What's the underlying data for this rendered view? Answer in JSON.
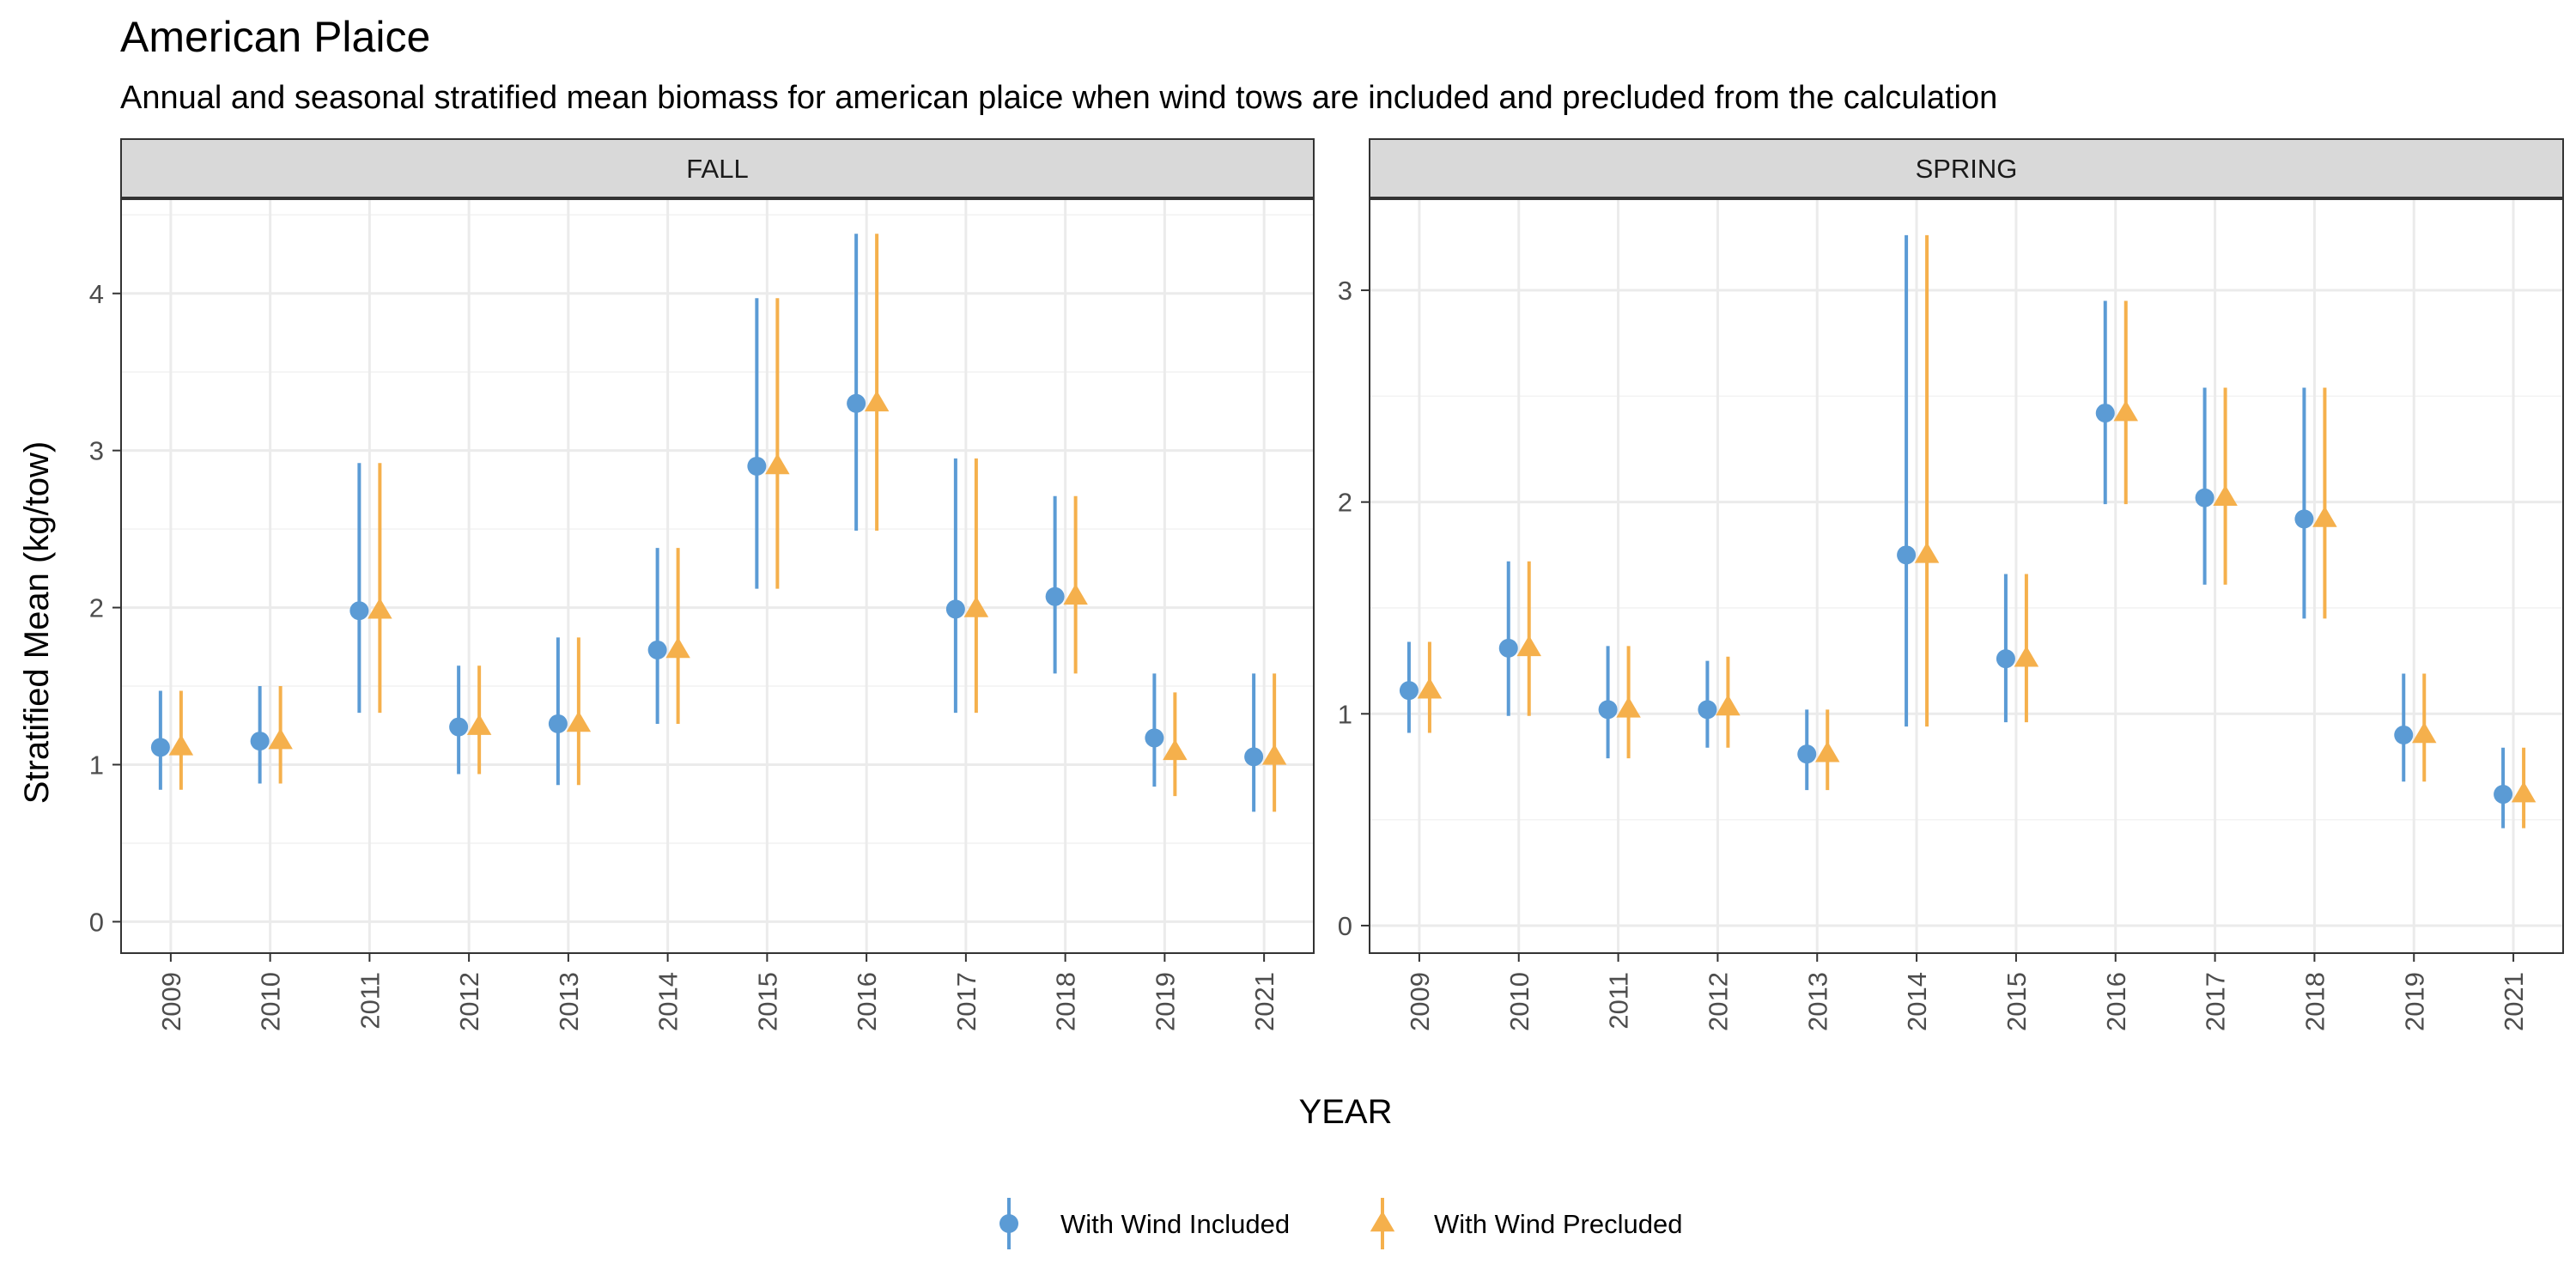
{
  "chart_data": {
    "type": "scatter",
    "title": "American Plaice",
    "subtitle": "Annual and seasonal stratified mean biomass for american plaice when wind tows are included and precluded from the calculation",
    "xlabel": "YEAR",
    "ylabel": "Stratified Mean (kg/tow)",
    "legend_position": "bottom",
    "grid": true,
    "series": [
      {
        "name": "With Wind Included",
        "color": "#5B9BD5",
        "marker": "circle"
      },
      {
        "name": "With Wind Precluded",
        "color": "#F5B04C",
        "marker": "triangle"
      }
    ],
    "panels": [
      {
        "strip": "FALL",
        "categories": [
          "2009",
          "2010",
          "2011",
          "2012",
          "2013",
          "2014",
          "2015",
          "2016",
          "2017",
          "2018",
          "2019",
          "2021"
        ],
        "ylim": [
          -0.2,
          4.6
        ],
        "yticks": [
          0,
          1,
          2,
          3,
          4
        ],
        "series_values": [
          [
            {
              "x": "2009",
              "y": 1.11,
              "lo": 0.84,
              "hi": 1.47
            },
            {
              "x": "2010",
              "y": 1.15,
              "lo": 0.88,
              "hi": 1.5
            },
            {
              "x": "2011",
              "y": 1.98,
              "lo": 1.33,
              "hi": 2.92
            },
            {
              "x": "2012",
              "y": 1.24,
              "lo": 0.94,
              "hi": 1.63
            },
            {
              "x": "2013",
              "y": 1.26,
              "lo": 0.87,
              "hi": 1.81
            },
            {
              "x": "2014",
              "y": 1.73,
              "lo": 1.26,
              "hi": 2.38
            },
            {
              "x": "2015",
              "y": 2.9,
              "lo": 2.12,
              "hi": 3.97
            },
            {
              "x": "2016",
              "y": 3.3,
              "lo": 2.49,
              "hi": 4.38
            },
            {
              "x": "2017",
              "y": 1.99,
              "lo": 1.33,
              "hi": 2.95
            },
            {
              "x": "2018",
              "y": 2.07,
              "lo": 1.58,
              "hi": 2.71
            },
            {
              "x": "2019",
              "y": 1.17,
              "lo": 0.86,
              "hi": 1.58
            },
            {
              "x": "2021",
              "y": 1.05,
              "lo": 0.7,
              "hi": 1.58
            }
          ],
          [
            {
              "x": "2009",
              "y": 1.11,
              "lo": 0.84,
              "hi": 1.47
            },
            {
              "x": "2010",
              "y": 1.15,
              "lo": 0.88,
              "hi": 1.5
            },
            {
              "x": "2011",
              "y": 1.98,
              "lo": 1.33,
              "hi": 2.92
            },
            {
              "x": "2012",
              "y": 1.24,
              "lo": 0.94,
              "hi": 1.63
            },
            {
              "x": "2013",
              "y": 1.26,
              "lo": 0.87,
              "hi": 1.81
            },
            {
              "x": "2014",
              "y": 1.73,
              "lo": 1.26,
              "hi": 2.38
            },
            {
              "x": "2015",
              "y": 2.9,
              "lo": 2.12,
              "hi": 3.97
            },
            {
              "x": "2016",
              "y": 3.3,
              "lo": 2.49,
              "hi": 4.38
            },
            {
              "x": "2017",
              "y": 1.99,
              "lo": 1.33,
              "hi": 2.95
            },
            {
              "x": "2018",
              "y": 2.07,
              "lo": 1.58,
              "hi": 2.71
            },
            {
              "x": "2019",
              "y": 1.08,
              "lo": 0.8,
              "hi": 1.46
            },
            {
              "x": "2021",
              "y": 1.05,
              "lo": 0.7,
              "hi": 1.58
            }
          ]
        ]
      },
      {
        "strip": "SPRING",
        "categories": [
          "2009",
          "2010",
          "2011",
          "2012",
          "2013",
          "2014",
          "2015",
          "2016",
          "2017",
          "2018",
          "2019",
          "2021"
        ],
        "ylim": [
          -0.13,
          3.43
        ],
        "yticks": [
          0,
          1,
          2,
          3
        ],
        "series_values": [
          [
            {
              "x": "2009",
              "y": 1.11,
              "lo": 0.91,
              "hi": 1.34
            },
            {
              "x": "2010",
              "y": 1.31,
              "lo": 0.99,
              "hi": 1.72
            },
            {
              "x": "2011",
              "y": 1.02,
              "lo": 0.79,
              "hi": 1.32
            },
            {
              "x": "2012",
              "y": 1.02,
              "lo": 0.84,
              "hi": 1.25
            },
            {
              "x": "2013",
              "y": 0.81,
              "lo": 0.64,
              "hi": 1.02
            },
            {
              "x": "2014",
              "y": 1.75,
              "lo": 0.94,
              "hi": 3.26
            },
            {
              "x": "2015",
              "y": 1.26,
              "lo": 0.96,
              "hi": 1.66
            },
            {
              "x": "2016",
              "y": 2.42,
              "lo": 1.99,
              "hi": 2.95
            },
            {
              "x": "2017",
              "y": 2.02,
              "lo": 1.61,
              "hi": 2.54
            },
            {
              "x": "2018",
              "y": 1.92,
              "lo": 1.45,
              "hi": 2.54
            },
            {
              "x": "2019",
              "y": 0.9,
              "lo": 0.68,
              "hi": 1.19
            },
            {
              "x": "2021",
              "y": 0.62,
              "lo": 0.46,
              "hi": 0.84
            }
          ],
          [
            {
              "x": "2009",
              "y": 1.11,
              "lo": 0.91,
              "hi": 1.34
            },
            {
              "x": "2010",
              "y": 1.31,
              "lo": 0.99,
              "hi": 1.72
            },
            {
              "x": "2011",
              "y": 1.02,
              "lo": 0.79,
              "hi": 1.32
            },
            {
              "x": "2012",
              "y": 1.03,
              "lo": 0.84,
              "hi": 1.27
            },
            {
              "x": "2013",
              "y": 0.81,
              "lo": 0.64,
              "hi": 1.02
            },
            {
              "x": "2014",
              "y": 1.75,
              "lo": 0.94,
              "hi": 3.26
            },
            {
              "x": "2015",
              "y": 1.26,
              "lo": 0.96,
              "hi": 1.66
            },
            {
              "x": "2016",
              "y": 2.42,
              "lo": 1.99,
              "hi": 2.95
            },
            {
              "x": "2017",
              "y": 2.02,
              "lo": 1.61,
              "hi": 2.54
            },
            {
              "x": "2018",
              "y": 1.92,
              "lo": 1.45,
              "hi": 2.54
            },
            {
              "x": "2019",
              "y": 0.9,
              "lo": 0.68,
              "hi": 1.19
            },
            {
              "x": "2021",
              "y": 0.62,
              "lo": 0.46,
              "hi": 0.84
            }
          ]
        ]
      }
    ]
  }
}
